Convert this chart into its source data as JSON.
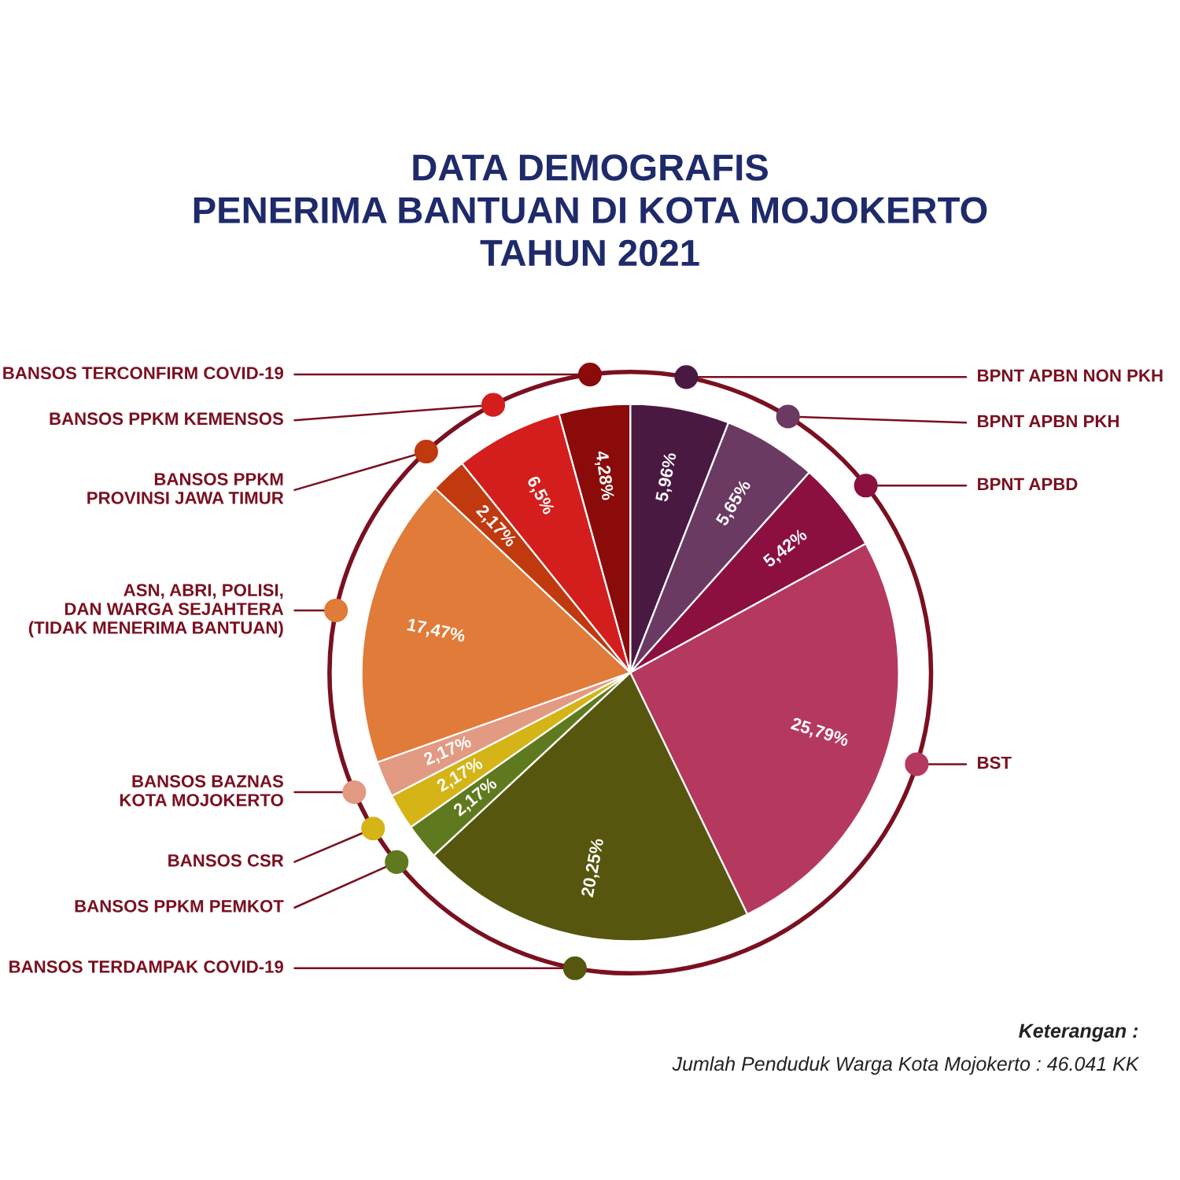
{
  "chart_data": {
    "type": "pie",
    "title": "DATA DEMOGRAFIS\nPENERIMA BANTUAN DI KOTA MOJOKERTO\nTAHUN 2021",
    "categories": [
      "BPNT APBN NON PKH",
      "BPNT APBN PKH",
      "BPNT APBD",
      "BST",
      "BANSOS TERDAMPAK COVID-19",
      "BANSOS PPKM PEMKOT",
      "BANSOS CSR",
      "BANSOS BAZNAS\nKOTA MOJOKERTO",
      "ASN, ABRI, POLISI,\nDAN WARGA SEJAHTERA\n(TIDAK MENERIMA BANTUAN)",
      "BANSOS PPKM\nPROVINSI JAWA TIMUR",
      "BANSOS PPKM KEMENSOS",
      "BANSOS TERCONFIRM COVID-19"
    ],
    "values": [
      5.96,
      5.65,
      5.42,
      25.79,
      20.25,
      2.17,
      2.17,
      2.17,
      17.47,
      2.17,
      6.5,
      4.28
    ],
    "value_labels": [
      "5,96%",
      "5,65%",
      "5,42%",
      "25,79%",
      "20,25%",
      "2,17%",
      "2,17%",
      "2,17%",
      "17,47%",
      "2,17%",
      "6,5%",
      "4,28%"
    ],
    "colors": [
      "#4a1942",
      "#6b3a62",
      "#8b1040",
      "#b5395e",
      "#56560f",
      "#5f7a1e",
      "#d4b417",
      "#e29a82",
      "#e07b39",
      "#c0390f",
      "#d41e1e",
      "#8b0a0a"
    ],
    "annotations": [
      "Keterangan :",
      "Jumlah Penduduk Warga Kota Mojokerto : 46.041 KK"
    ]
  }
}
